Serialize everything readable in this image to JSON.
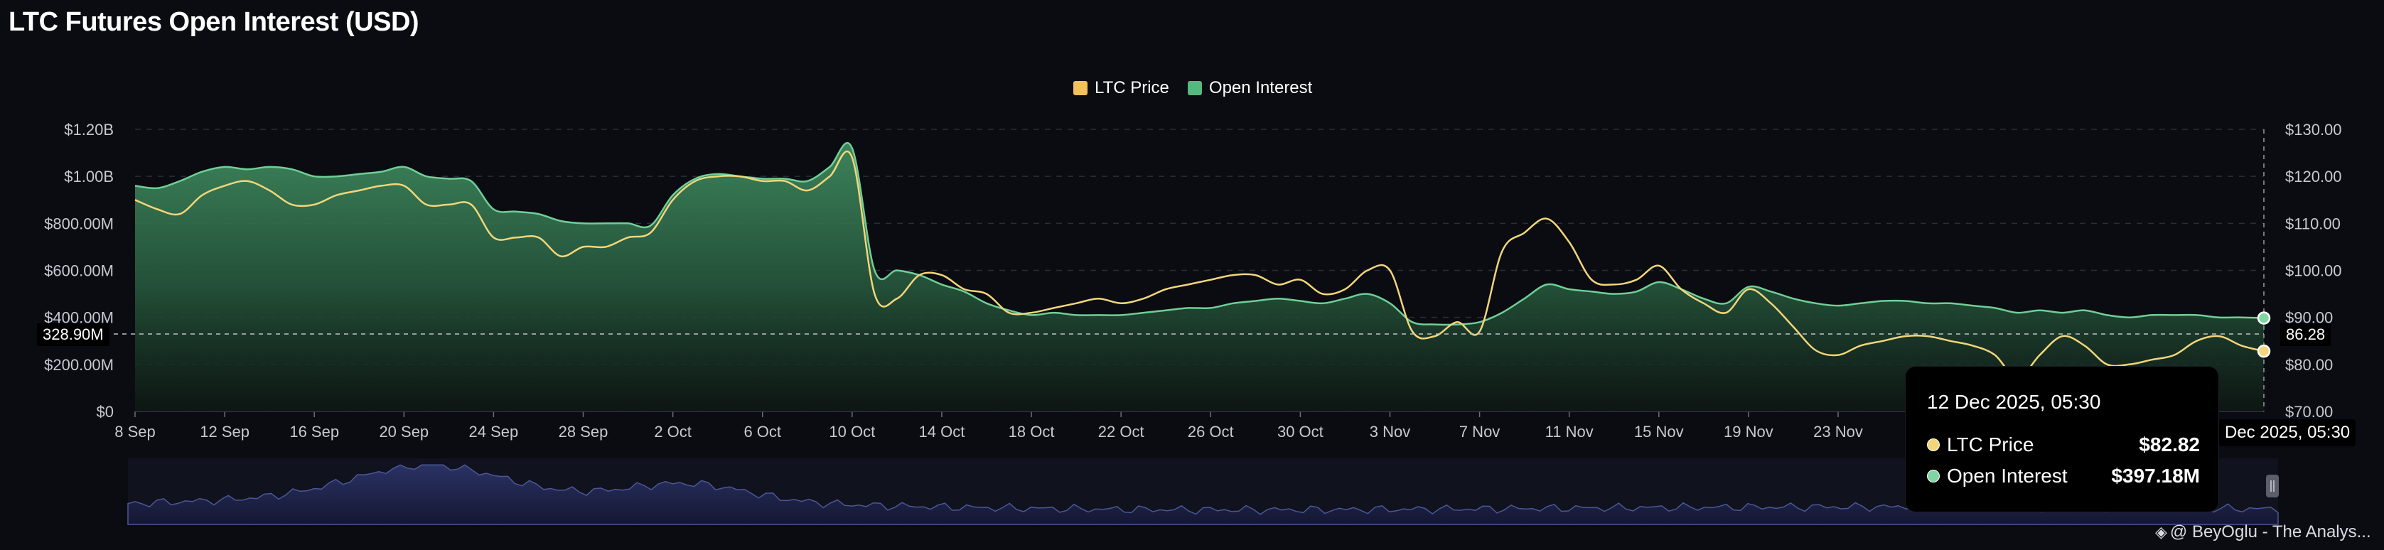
{
  "page": {
    "title": "LTC Futures Open Interest (USD)"
  },
  "chart_data": {
    "type": "area",
    "title": "LTC Futures Open Interest (USD)",
    "legend": {
      "placement": "top-center",
      "items": [
        "LTC Price",
        "Open Interest"
      ]
    },
    "x_ticks": [
      "8 Sep",
      "12 Sep",
      "16 Sep",
      "20 Sep",
      "24 Sep",
      "28 Sep",
      "2 Oct",
      "6 Oct",
      "10 Oct",
      "14 Oct",
      "18 Oct",
      "22 Oct",
      "26 Oct",
      "30 Oct",
      "3 Nov",
      "7 Nov",
      "11 Nov",
      "15 Nov",
      "19 Nov",
      "23 Nov"
    ],
    "x_range": [
      "2025-09-08",
      "2025-12-12"
    ],
    "y_left": {
      "ticks": [
        "$0",
        "$200.00M",
        "$400.00M",
        "$600.00M",
        "$800.00M",
        "$1.00B",
        "$1.20B"
      ],
      "range": [
        0,
        1200000000
      ]
    },
    "y_right": {
      "ticks": [
        "$70.00",
        "$80.00",
        "$90.00",
        "$100.00",
        "$110.00",
        "$120.00",
        "$130.00"
      ],
      "range": [
        70,
        130
      ]
    },
    "grid": true,
    "series": [
      {
        "name": "Open Interest",
        "axis": "left",
        "color": "#4fae77",
        "points": [
          [
            "2025-09-08",
            960000000
          ],
          [
            "2025-09-09",
            950000000
          ],
          [
            "2025-09-10",
            980000000
          ],
          [
            "2025-09-11",
            1020000000
          ],
          [
            "2025-09-12",
            1040000000
          ],
          [
            "2025-09-13",
            1030000000
          ],
          [
            "2025-09-14",
            1040000000
          ],
          [
            "2025-09-15",
            1030000000
          ],
          [
            "2025-09-16",
            1000000000
          ],
          [
            "2025-09-17",
            1000000000
          ],
          [
            "2025-09-18",
            1010000000
          ],
          [
            "2025-09-19",
            1020000000
          ],
          [
            "2025-09-20",
            1040000000
          ],
          [
            "2025-09-21",
            1000000000
          ],
          [
            "2025-09-22",
            990000000
          ],
          [
            "2025-09-23",
            980000000
          ],
          [
            "2025-09-24",
            860000000
          ],
          [
            "2025-09-25",
            850000000
          ],
          [
            "2025-09-26",
            840000000
          ],
          [
            "2025-09-27",
            810000000
          ],
          [
            "2025-09-28",
            800000000
          ],
          [
            "2025-09-29",
            800000000
          ],
          [
            "2025-09-30",
            800000000
          ],
          [
            "2025-10-01",
            790000000
          ],
          [
            "2025-10-02",
            920000000
          ],
          [
            "2025-10-03",
            990000000
          ],
          [
            "2025-10-04",
            1010000000
          ],
          [
            "2025-10-05",
            1000000000
          ],
          [
            "2025-10-06",
            990000000
          ],
          [
            "2025-10-07",
            990000000
          ],
          [
            "2025-10-08",
            980000000
          ],
          [
            "2025-10-09",
            1040000000
          ],
          [
            "2025-10-10",
            1120000000
          ],
          [
            "2025-10-11",
            600000000
          ],
          [
            "2025-10-12",
            600000000
          ],
          [
            "2025-10-13",
            580000000
          ],
          [
            "2025-10-14",
            540000000
          ],
          [
            "2025-10-15",
            510000000
          ],
          [
            "2025-10-16",
            460000000
          ],
          [
            "2025-10-17",
            430000000
          ],
          [
            "2025-10-18",
            410000000
          ],
          [
            "2025-10-19",
            420000000
          ],
          [
            "2025-10-20",
            410000000
          ],
          [
            "2025-10-21",
            410000000
          ],
          [
            "2025-10-22",
            410000000
          ],
          [
            "2025-10-23",
            420000000
          ],
          [
            "2025-10-24",
            430000000
          ],
          [
            "2025-10-25",
            440000000
          ],
          [
            "2025-10-26",
            440000000
          ],
          [
            "2025-10-27",
            460000000
          ],
          [
            "2025-10-28",
            470000000
          ],
          [
            "2025-10-29",
            480000000
          ],
          [
            "2025-10-30",
            470000000
          ],
          [
            "2025-10-31",
            460000000
          ],
          [
            "2025-11-01",
            480000000
          ],
          [
            "2025-11-02",
            500000000
          ],
          [
            "2025-11-03",
            460000000
          ],
          [
            "2025-11-04",
            380000000
          ],
          [
            "2025-11-05",
            370000000
          ],
          [
            "2025-11-06",
            370000000
          ],
          [
            "2025-11-07",
            380000000
          ],
          [
            "2025-11-08",
            420000000
          ],
          [
            "2025-11-09",
            480000000
          ],
          [
            "2025-11-10",
            540000000
          ],
          [
            "2025-11-11",
            520000000
          ],
          [
            "2025-11-12",
            510000000
          ],
          [
            "2025-11-13",
            500000000
          ],
          [
            "2025-11-14",
            510000000
          ],
          [
            "2025-11-15",
            550000000
          ],
          [
            "2025-11-16",
            520000000
          ],
          [
            "2025-11-17",
            480000000
          ],
          [
            "2025-11-18",
            460000000
          ],
          [
            "2025-11-19",
            530000000
          ],
          [
            "2025-11-20",
            510000000
          ],
          [
            "2025-11-21",
            480000000
          ],
          [
            "2025-11-22",
            460000000
          ],
          [
            "2025-11-23",
            450000000
          ],
          [
            "2025-11-24",
            460000000
          ],
          [
            "2025-11-25",
            470000000
          ],
          [
            "2025-11-26",
            470000000
          ],
          [
            "2025-11-27",
            460000000
          ],
          [
            "2025-11-28",
            460000000
          ],
          [
            "2025-11-29",
            450000000
          ],
          [
            "2025-11-30",
            440000000
          ],
          [
            "2025-12-01",
            420000000
          ],
          [
            "2025-12-02",
            430000000
          ],
          [
            "2025-12-03",
            420000000
          ],
          [
            "2025-12-04",
            430000000
          ],
          [
            "2025-12-05",
            410000000
          ],
          [
            "2025-12-06",
            400000000
          ],
          [
            "2025-12-07",
            410000000
          ],
          [
            "2025-12-08",
            410000000
          ],
          [
            "2025-12-09",
            410000000
          ],
          [
            "2025-12-10",
            400000000
          ],
          [
            "2025-12-11",
            400000000
          ],
          [
            "2025-12-12",
            397180000
          ]
        ]
      },
      {
        "name": "LTC Price",
        "axis": "right",
        "color": "#f2d67a",
        "points": [
          [
            "2025-09-08",
            115
          ],
          [
            "2025-09-09",
            113
          ],
          [
            "2025-09-10",
            112
          ],
          [
            "2025-09-11",
            116
          ],
          [
            "2025-09-12",
            118
          ],
          [
            "2025-09-13",
            119
          ],
          [
            "2025-09-14",
            117
          ],
          [
            "2025-09-15",
            114
          ],
          [
            "2025-09-16",
            114
          ],
          [
            "2025-09-17",
            116
          ],
          [
            "2025-09-18",
            117
          ],
          [
            "2025-09-19",
            118
          ],
          [
            "2025-09-20",
            118
          ],
          [
            "2025-09-21",
            114
          ],
          [
            "2025-09-22",
            114
          ],
          [
            "2025-09-23",
            114
          ],
          [
            "2025-09-24",
            107
          ],
          [
            "2025-09-25",
            107
          ],
          [
            "2025-09-26",
            107
          ],
          [
            "2025-09-27",
            103
          ],
          [
            "2025-09-28",
            105
          ],
          [
            "2025-09-29",
            105
          ],
          [
            "2025-09-30",
            107
          ],
          [
            "2025-10-01",
            108
          ],
          [
            "2025-10-02",
            115
          ],
          [
            "2025-10-03",
            119
          ],
          [
            "2025-10-04",
            120
          ],
          [
            "2025-10-05",
            120
          ],
          [
            "2025-10-06",
            119
          ],
          [
            "2025-10-07",
            119
          ],
          [
            "2025-10-08",
            117
          ],
          [
            "2025-10-09",
            120
          ],
          [
            "2025-10-10",
            124
          ],
          [
            "2025-10-11",
            95
          ],
          [
            "2025-10-12",
            94
          ],
          [
            "2025-10-13",
            99
          ],
          [
            "2025-10-14",
            99
          ],
          [
            "2025-10-15",
            96
          ],
          [
            "2025-10-16",
            95
          ],
          [
            "2025-10-17",
            91
          ],
          [
            "2025-10-18",
            91
          ],
          [
            "2025-10-19",
            92
          ],
          [
            "2025-10-20",
            93
          ],
          [
            "2025-10-21",
            94
          ],
          [
            "2025-10-22",
            93
          ],
          [
            "2025-10-23",
            94
          ],
          [
            "2025-10-24",
            96
          ],
          [
            "2025-10-25",
            97
          ],
          [
            "2025-10-26",
            98
          ],
          [
            "2025-10-27",
            99
          ],
          [
            "2025-10-28",
            99
          ],
          [
            "2025-10-29",
            97
          ],
          [
            "2025-10-30",
            98
          ],
          [
            "2025-10-31",
            95
          ],
          [
            "2025-11-01",
            96
          ],
          [
            "2025-11-02",
            100
          ],
          [
            "2025-11-03",
            100
          ],
          [
            "2025-11-04",
            87
          ],
          [
            "2025-11-05",
            86
          ],
          [
            "2025-11-06",
            89
          ],
          [
            "2025-11-07",
            87
          ],
          [
            "2025-11-08",
            104
          ],
          [
            "2025-11-09",
            108
          ],
          [
            "2025-11-10",
            111
          ],
          [
            "2025-11-11",
            106
          ],
          [
            "2025-11-12",
            98
          ],
          [
            "2025-11-13",
            97
          ],
          [
            "2025-11-14",
            98
          ],
          [
            "2025-11-15",
            101
          ],
          [
            "2025-11-16",
            96
          ],
          [
            "2025-11-17",
            93
          ],
          [
            "2025-11-18",
            91
          ],
          [
            "2025-11-19",
            96
          ],
          [
            "2025-11-20",
            93
          ],
          [
            "2025-11-21",
            88
          ],
          [
            "2025-11-22",
            83
          ],
          [
            "2025-11-23",
            82
          ],
          [
            "2025-11-24",
            84
          ],
          [
            "2025-11-25",
            85
          ],
          [
            "2025-11-26",
            86
          ],
          [
            "2025-11-27",
            86
          ],
          [
            "2025-11-28",
            85
          ],
          [
            "2025-11-29",
            84
          ],
          [
            "2025-11-30",
            82
          ],
          [
            "2025-12-01",
            77
          ],
          [
            "2025-12-02",
            82
          ],
          [
            "2025-12-03",
            86
          ],
          [
            "2025-12-04",
            84
          ],
          [
            "2025-12-05",
            80
          ],
          [
            "2025-12-06",
            80
          ],
          [
            "2025-12-07",
            81
          ],
          [
            "2025-12-08",
            82
          ],
          [
            "2025-12-09",
            85
          ],
          [
            "2025-12-10",
            86
          ],
          [
            "2025-12-11",
            84
          ],
          [
            "2025-12-12",
            82.82
          ]
        ]
      }
    ],
    "crosshair": {
      "y_left_label": "328.90M",
      "y_right_label": "86.28",
      "x_label": "Dec 2025, 05:30"
    },
    "tooltip": {
      "time": "12 Dec 2025, 05:30",
      "rows": [
        {
          "name": "LTC Price",
          "value": "$82.82"
        },
        {
          "name": "Open Interest",
          "value": "$397.18M"
        }
      ]
    }
  },
  "watermark": {
    "text": "@ BeyOglu - The Analys..."
  },
  "colors": {
    "price": "#f2d67a",
    "oi": "#4fae77",
    "navigator": "#3d4578",
    "background": "#0b0c11"
  }
}
